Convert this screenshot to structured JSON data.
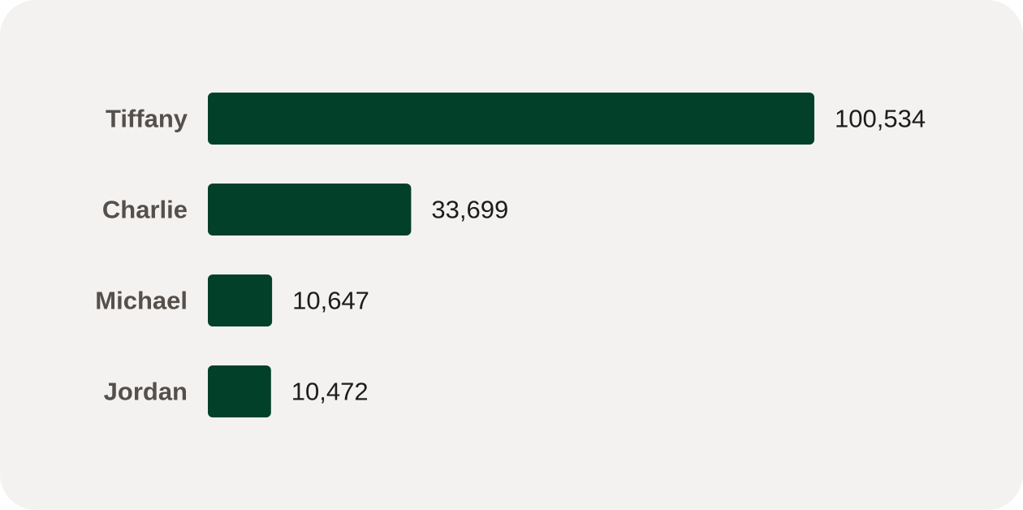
{
  "chart_data": {
    "type": "bar",
    "orientation": "horizontal",
    "categories": [
      "Tiffany",
      "Charlie",
      "Michael",
      "Jordan"
    ],
    "values": [
      100534,
      33699,
      10647,
      10472
    ],
    "value_labels": [
      "100,534",
      "33,699",
      "10,647",
      "10,472"
    ],
    "color": "#02402a"
  }
}
